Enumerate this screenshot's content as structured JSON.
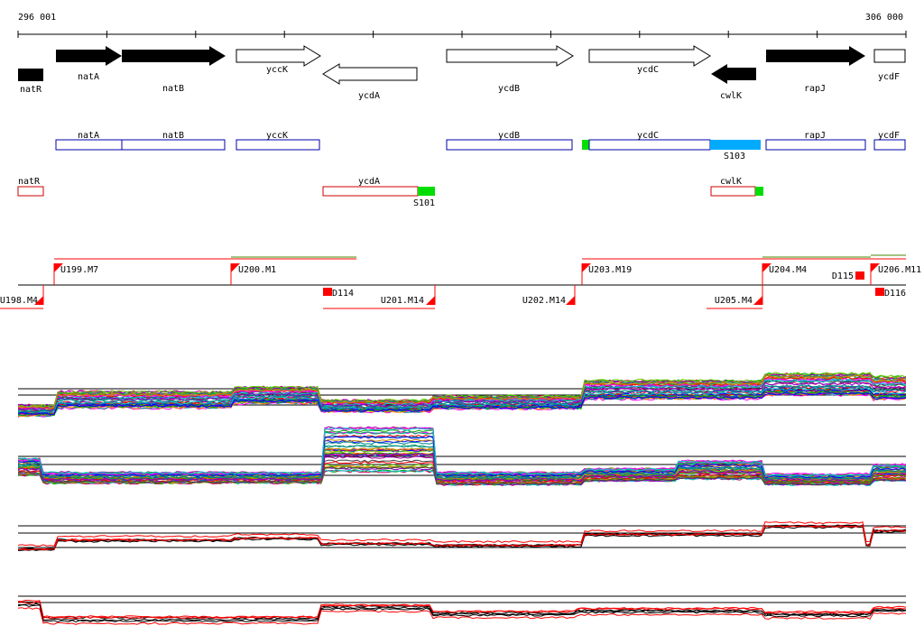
{
  "coords": {
    "start": "296 001",
    "end": "306 000"
  },
  "genes": [
    {
      "name": "natR",
      "filled": true,
      "strand": "none"
    },
    {
      "name": "natA",
      "filled": true,
      "strand": "+"
    },
    {
      "name": "natB",
      "filled": true,
      "strand": "+"
    },
    {
      "name": "yccK",
      "filled": false,
      "strand": "+"
    },
    {
      "name": "ycdA",
      "filled": false,
      "strand": "-"
    },
    {
      "name": "ycdB",
      "filled": false,
      "strand": "+"
    },
    {
      "name": "ycdC",
      "filled": false,
      "strand": "+"
    },
    {
      "name": "cwlK",
      "filled": true,
      "strand": "-"
    },
    {
      "name": "rapJ",
      "filled": true,
      "strand": "+"
    },
    {
      "name": "ycdF",
      "filled": false,
      "strand": "none"
    }
  ],
  "blue_boxes": [
    "natA",
    "natB",
    "yccK",
    "ycdB",
    "ycdC",
    "rapJ",
    "ycdF"
  ],
  "blue_highlight": "S103",
  "red_boxes": [
    "natR",
    "ycdA",
    "cwlK"
  ],
  "red_highlight": "S101",
  "segments_upper": [
    "U199.M7",
    "U200.M1",
    "U203.M19",
    "U204.M4",
    "U206.M11"
  ],
  "segments_lower": [
    "U198.M4",
    "U201.M14",
    "U202.M14",
    "U205.M4"
  ],
  "down_labels": [
    "D114",
    "D115",
    "D116"
  ],
  "colors": {
    "black": "#000000",
    "blue_box": "#0000aa",
    "red_box": "#cc0000",
    "green": "#00dd00",
    "cyan": "#00aaff",
    "red_marker": "#ff0000",
    "olive": "#448800"
  }
}
